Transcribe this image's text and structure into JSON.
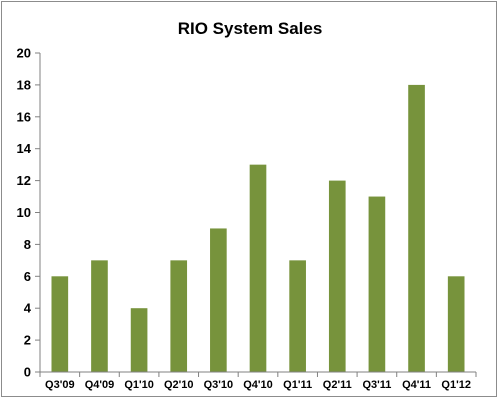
{
  "chart_data": {
    "type": "bar",
    "title": "RIO System Sales",
    "xlabel": "",
    "ylabel": "",
    "categories": [
      "Q3'09",
      "Q4'09",
      "Q1'10",
      "Q2'10",
      "Q3'10",
      "Q4'10",
      "Q1'11",
      "Q2'11",
      "Q3'11",
      "Q4'11",
      "Q1'12"
    ],
    "values": [
      6,
      7,
      4,
      7,
      9,
      13,
      7,
      12,
      11,
      18,
      6
    ],
    "ylim": [
      0,
      20
    ],
    "yticks": [
      0,
      2,
      4,
      6,
      8,
      10,
      12,
      14,
      16,
      18,
      20
    ],
    "grid": false,
    "legend": "none",
    "colors": {
      "bar": "#77933c",
      "axis": "#808080"
    }
  }
}
